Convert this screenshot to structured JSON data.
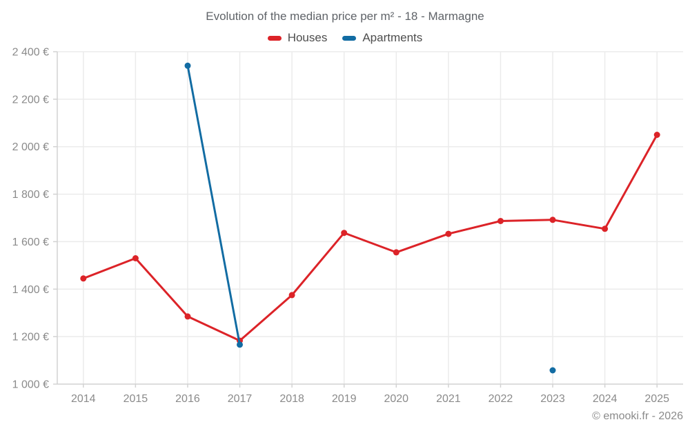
{
  "page": {
    "copyright": "© emooki.fr - 2026"
  },
  "chart_data": {
    "type": "line",
    "title": "Evolution of the median price per m² - 18 - Marmagne",
    "x": [
      2014,
      2015,
      2016,
      2017,
      2018,
      2019,
      2020,
      2021,
      2022,
      2023,
      2024,
      2025
    ],
    "series": [
      {
        "name": "Houses",
        "color": "#dc2328",
        "values": [
          1445,
          1530,
          1285,
          1183,
          1375,
          1637,
          1555,
          1633,
          1687,
          1692,
          1654,
          2050
        ]
      },
      {
        "name": "Apartments",
        "color": "#126ca3",
        "values": [
          null,
          null,
          2341,
          1166,
          null,
          null,
          null,
          null,
          null,
          1058,
          null,
          null
        ]
      }
    ],
    "ylim": [
      1000,
      2400
    ],
    "ytick_step": 200,
    "yticks": [
      {
        "value": 1000,
        "label": "1 000 €"
      },
      {
        "value": 1200,
        "label": "1 200 €"
      },
      {
        "value": 1400,
        "label": "1 400 €"
      },
      {
        "value": 1600,
        "label": "1 600 €"
      },
      {
        "value": 1800,
        "label": "1 800 €"
      },
      {
        "value": 2000,
        "label": "2 000 €"
      },
      {
        "value": 2200,
        "label": "2 200 €"
      },
      {
        "value": 2400,
        "label": "2 400 €"
      }
    ],
    "xlabel": "",
    "ylabel": "",
    "grid": true,
    "legend_position": "top"
  }
}
